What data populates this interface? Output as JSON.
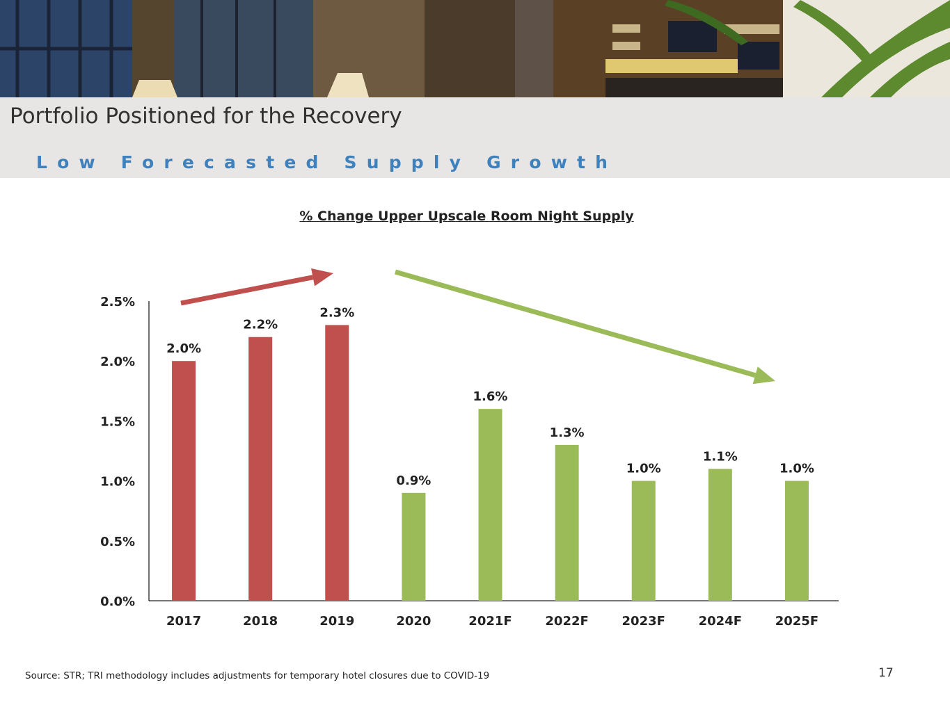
{
  "header": {
    "title": "Portfolio Positioned for the Recovery",
    "subtitle": "Low Forecasted Supply Growth"
  },
  "chart_data": {
    "type": "bar",
    "title": "% Change Upper Upscale Room Night Supply",
    "xlabel": "",
    "ylabel": "",
    "categories": [
      "2017",
      "2018",
      "2019",
      "2020",
      "2021F",
      "2022F",
      "2023F",
      "2024F",
      "2025F"
    ],
    "values": [
      2.0,
      2.2,
      2.3,
      0.9,
      1.6,
      1.3,
      1.0,
      1.1,
      1.0
    ],
    "value_labels": [
      "2.0%",
      "2.2%",
      "2.3%",
      "0.9%",
      "1.6%",
      "1.3%",
      "1.0%",
      "1.1%",
      "1.0%"
    ],
    "ylim": [
      0,
      2.5
    ],
    "yticks": [
      0,
      0.5,
      1.0,
      1.5,
      2.0,
      2.5
    ],
    "ytick_labels": [
      "0.0%",
      "0.5%",
      "1.0%",
      "1.5%",
      "2.0%",
      "2.5%"
    ],
    "grid": false,
    "legend": "none",
    "colors": {
      "historical": "#c0504d",
      "recent": "#9bbb59"
    },
    "bar_colors": [
      "#c0504d",
      "#c0504d",
      "#c0504d",
      "#9bbb59",
      "#9bbb59",
      "#9bbb59",
      "#9bbb59",
      "#9bbb59",
      "#9bbb59"
    ],
    "annotations": [
      {
        "kind": "trend-arrow",
        "direction": "up",
        "color": "#c0504d",
        "from_category": "2017",
        "to_category": "2019"
      },
      {
        "kind": "trend-arrow",
        "direction": "down",
        "color": "#9bbb59",
        "from_category": "2020",
        "to_category": "2025F"
      }
    ]
  },
  "footer": {
    "source": "Source: STR; TRI methodology includes adjustments for temporary hotel closures due to COVID-19",
    "page_number": "17"
  }
}
